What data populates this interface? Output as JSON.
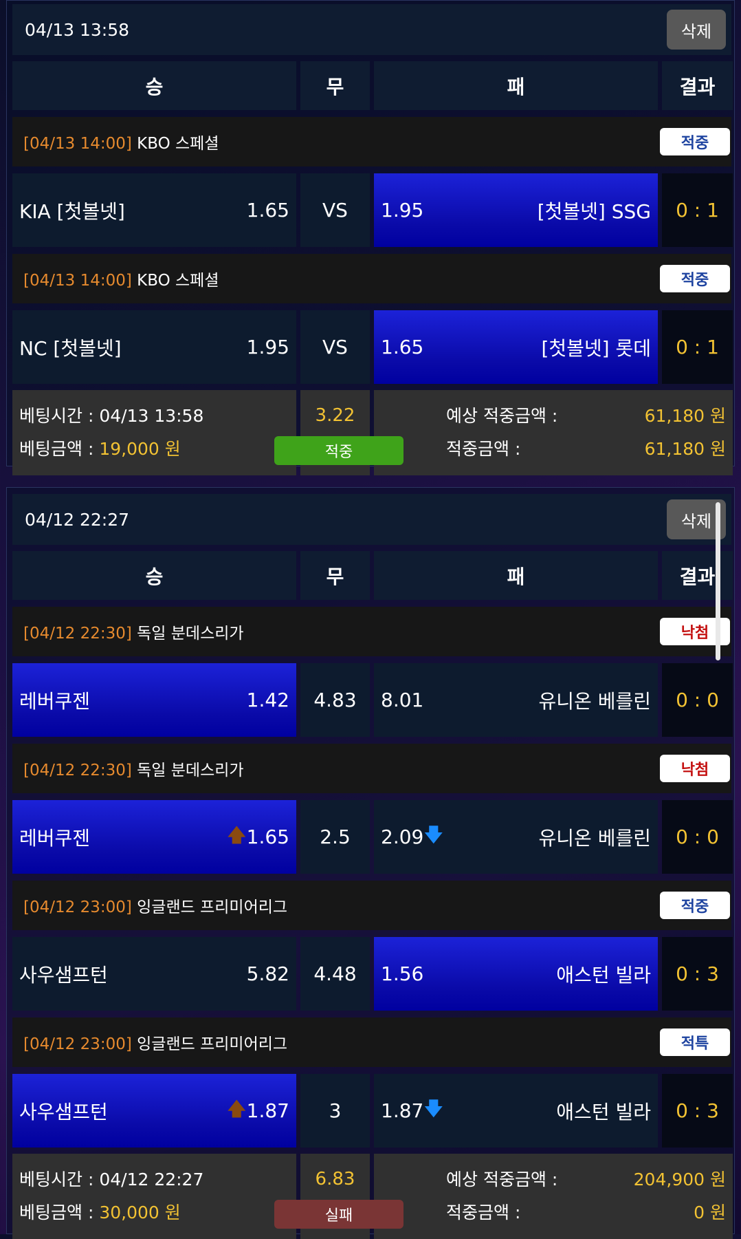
{
  "columns": {
    "win": "승",
    "draw": "무",
    "lose": "패",
    "result": "결과"
  },
  "delete_label": "삭제",
  "footer_labels": {
    "bet_time": "베팅시간 : ",
    "bet_amount": "베팅금액 : ",
    "expected": "예상 적중금액 :",
    "won": "적중금액 :"
  },
  "colors": {
    "selected": "#0a0aa8",
    "win_status": "#3fa31a",
    "fail_status": "#7a3535",
    "accent": "#f2c233",
    "time": "#e68a2e"
  },
  "bets": [
    {
      "date": "04/13 13:58",
      "matches": [
        {
          "time": "[04/13 14:00]",
          "league": "KBO 스페셜",
          "badge": "적중",
          "badge_type": "win",
          "home": "KIA [첫볼넷]",
          "home_odds": "1.65",
          "draw": "VS",
          "away_odds": "1.95",
          "away": "[첫볼넷] SSG",
          "score": "0 : 1",
          "selected": "away",
          "home_arrow": "",
          "away_arrow": ""
        },
        {
          "time": "[04/13 14:00]",
          "league": "KBO 스페셜",
          "badge": "적중",
          "badge_type": "win",
          "home": "NC [첫볼넷]",
          "home_odds": "1.95",
          "draw": "VS",
          "away_odds": "1.65",
          "away": "[첫볼넷] 롯데",
          "score": "0 : 1",
          "selected": "away",
          "home_arrow": "",
          "away_arrow": ""
        }
      ],
      "bet_time": "04/13 13:58",
      "bet_amount": "19,000 원",
      "total_odds": "3.22",
      "status": "적중",
      "status_type": "win",
      "expected": "61,180 원",
      "won": "61,180 원"
    },
    {
      "date": "04/12 22:27",
      "matches": [
        {
          "time": "[04/12 22:30]",
          "league": "독일 분데스리가",
          "badge": "낙첨",
          "badge_type": "lose",
          "home": "레버쿠젠",
          "home_odds": "1.42",
          "draw": "4.83",
          "away_odds": "8.01",
          "away": "유니온 베를린",
          "score": "0 : 0",
          "selected": "home",
          "home_arrow": "",
          "away_arrow": ""
        },
        {
          "time": "[04/12 22:30]",
          "league": "독일 분데스리가",
          "badge": "낙첨",
          "badge_type": "lose",
          "home": "레버쿠젠",
          "home_odds": "1.65",
          "draw": "2.5",
          "away_odds": "2.09",
          "away": "유니온 베를린",
          "score": "0 : 0",
          "selected": "home",
          "home_arrow": "up",
          "away_arrow": "down"
        },
        {
          "time": "[04/12 23:00]",
          "league": "잉글랜드 프리미어리그",
          "badge": "적중",
          "badge_type": "win",
          "home": "사우샘프턴",
          "home_odds": "5.82",
          "draw": "4.48",
          "away_odds": "1.56",
          "away": "애스턴 빌라",
          "score": "0 : 3",
          "selected": "away",
          "home_arrow": "",
          "away_arrow": ""
        },
        {
          "time": "[04/12 23:00]",
          "league": "잉글랜드 프리미어리그",
          "badge": "적특",
          "badge_type": "win",
          "home": "사우샘프턴",
          "home_odds": "1.87",
          "draw": "3",
          "away_odds": "1.87",
          "away": "애스턴 빌라",
          "score": "0 : 3",
          "selected": "home",
          "home_arrow": "up",
          "away_arrow": "down"
        }
      ],
      "bet_time": "04/12 22:27",
      "bet_amount": "30,000 원",
      "total_odds": "6.83",
      "status": "실패",
      "status_type": "fail",
      "expected": "204,900 원",
      "won": "0 원"
    }
  ]
}
